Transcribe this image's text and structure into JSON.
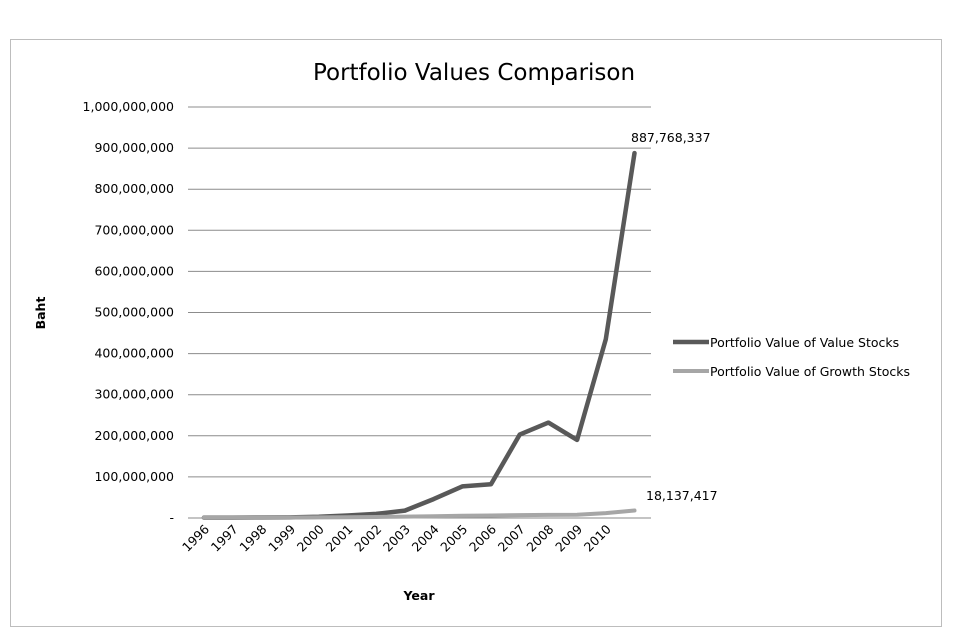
{
  "chart_data": {
    "type": "line",
    "title": "Portfolio Values Comparison",
    "xlabel": "Year",
    "ylabel": "Baht",
    "categories": [
      "1996",
      "1997",
      "1998",
      "1999",
      "2000",
      "2001",
      "2002",
      "2003",
      "2004",
      "2005",
      "2006",
      "2007",
      "2008",
      "2009",
      "2010"
    ],
    "ylim": [
      0,
      1000000000
    ],
    "yticks": [
      0,
      100000000,
      200000000,
      300000000,
      400000000,
      500000000,
      600000000,
      700000000,
      800000000,
      900000000,
      1000000000
    ],
    "ytick_labels": [
      "-",
      "100,000,000",
      "200,000,000",
      "300,000,000",
      "400,000,000",
      "500,000,000",
      "600,000,000",
      "700,000,000",
      "800,000,000",
      "900,000,000",
      "1,000,000,000"
    ],
    "grid": true,
    "legend_position": "right",
    "series": [
      {
        "name": "Portfolio Value of Value Stocks",
        "color": "#595959",
        "x": [
          1996,
          1997,
          1998,
          1999,
          2000,
          2001,
          2002,
          2003,
          2004,
          2005,
          2006,
          2007,
          2008,
          2009,
          2010,
          2011
        ],
        "values": [
          1000000,
          1000000,
          1200000,
          1500000,
          3000000,
          6000000,
          10000000,
          18000000,
          46000000,
          77000000,
          82000000,
          203000000,
          232000000,
          190000000,
          435000000,
          887768337
        ],
        "end_label": "887,768,337"
      },
      {
        "name": "Portfolio Value of Growth Stocks",
        "color": "#a6a6a6",
        "x": [
          1996,
          1997,
          1998,
          1999,
          2000,
          2001,
          2002,
          2003,
          2004,
          2005,
          2006,
          2007,
          2008,
          2009,
          2010,
          2011
        ],
        "values": [
          1000000,
          1000000,
          1000000,
          1200000,
          1500000,
          2000000,
          2500000,
          3500000,
          4500000,
          5500000,
          6000000,
          7000000,
          7500000,
          7800000,
          12000000,
          18137417
        ],
        "end_label": "18,137,417"
      }
    ]
  }
}
